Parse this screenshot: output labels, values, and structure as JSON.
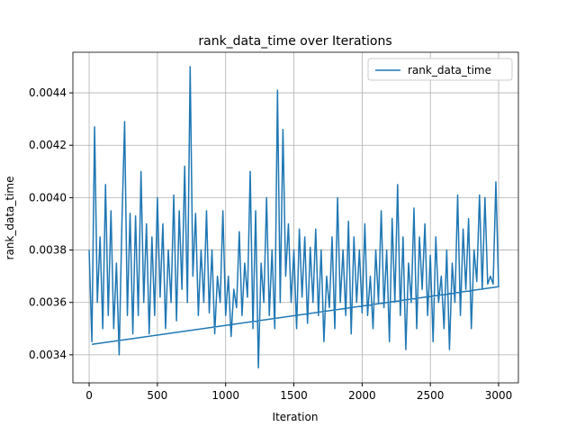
{
  "chart_data": {
    "type": "line",
    "title": "rank_data_time over Iterations",
    "xlabel": "Iteration",
    "ylabel": "rank_data_time",
    "x": [
      0,
      20,
      40,
      60,
      80,
      100,
      120,
      140,
      160,
      180,
      200,
      220,
      240,
      260,
      280,
      300,
      320,
      340,
      360,
      380,
      400,
      420,
      440,
      460,
      480,
      500,
      520,
      540,
      560,
      580,
      600,
      620,
      640,
      660,
      680,
      700,
      720,
      740,
      760,
      780,
      800,
      820,
      840,
      860,
      880,
      900,
      920,
      940,
      960,
      980,
      1000,
      1020,
      1040,
      1060,
      1080,
      1100,
      1120,
      1140,
      1160,
      1180,
      1200,
      1220,
      1240,
      1260,
      1280,
      1300,
      1320,
      1340,
      1360,
      1380,
      1400,
      1420,
      1440,
      1460,
      1480,
      1500,
      1520,
      1540,
      1560,
      1580,
      1600,
      1620,
      1640,
      1660,
      1680,
      1700,
      1720,
      1740,
      1760,
      1780,
      1800,
      1820,
      1840,
      1860,
      1880,
      1900,
      1920,
      1940,
      1960,
      1980,
      2000,
      2020,
      2040,
      2060,
      2080,
      2100,
      2120,
      2140,
      2160,
      2180,
      2200,
      2220,
      2240,
      2260,
      2280,
      2300,
      2320,
      2340,
      2360,
      2380,
      2400,
      2420,
      2440,
      2460,
      2480,
      2500,
      2520,
      2540,
      2560,
      2580,
      2600,
      2620,
      2640,
      2660,
      2680,
      2700,
      2720,
      2740,
      2760,
      2780,
      2800,
      2820,
      2840,
      2860,
      2880,
      2900,
      2920,
      2940,
      2960,
      2980,
      3000,
      20
    ],
    "series": [
      {
        "name": "rank_data_time",
        "color": "#1f77b4",
        "values": [
          0.0038,
          0.00345,
          0.00427,
          0.0036,
          0.00385,
          0.0035,
          0.00405,
          0.00355,
          0.00395,
          0.0035,
          0.00375,
          0.0034,
          0.0039,
          0.00429,
          0.00355,
          0.00394,
          0.00348,
          0.00393,
          0.00355,
          0.0041,
          0.0036,
          0.0039,
          0.00348,
          0.00385,
          0.00355,
          0.004,
          0.00362,
          0.0039,
          0.0035,
          0.0038,
          0.0036,
          0.00401,
          0.00353,
          0.00395,
          0.00365,
          0.00412,
          0.0036,
          0.0045,
          0.0037,
          0.00394,
          0.00355,
          0.0038,
          0.0036,
          0.00395,
          0.00356,
          0.0038,
          0.00348,
          0.0037,
          0.0036,
          0.00395,
          0.00355,
          0.0037,
          0.00347,
          0.00365,
          0.00358,
          0.00387,
          0.00355,
          0.00375,
          0.00362,
          0.0041,
          0.0035,
          0.00395,
          0.00335,
          0.00375,
          0.0036,
          0.004,
          0.00355,
          0.0038,
          0.0035,
          0.00441,
          0.0036,
          0.00426,
          0.0037,
          0.0039,
          0.0036,
          0.0038,
          0.0035,
          0.00388,
          0.00362,
          0.00385,
          0.00352,
          0.00381,
          0.0036,
          0.00388,
          0.00355,
          0.0038,
          0.00345,
          0.0037,
          0.00358,
          0.00385,
          0.0035,
          0.004,
          0.0036,
          0.0038,
          0.00355,
          0.00391,
          0.00348,
          0.00385,
          0.0036,
          0.0038,
          0.00356,
          0.0039,
          0.00355,
          0.0037,
          0.0035,
          0.0038,
          0.0036,
          0.00395,
          0.00358,
          0.0038,
          0.00345,
          0.00392,
          0.0036,
          0.00405,
          0.00355,
          0.00385,
          0.00342,
          0.00375,
          0.0036,
          0.00396,
          0.0035,
          0.00385,
          0.00365,
          0.0039,
          0.00355,
          0.00378,
          0.00345,
          0.00385,
          0.0036,
          0.0037,
          0.0035,
          0.0038,
          0.00342,
          0.00375,
          0.0036,
          0.00401,
          0.00355,
          0.00388,
          0.00365,
          0.00392,
          0.0035,
          0.0038,
          0.00368,
          0.00401,
          0.00365,
          0.004,
          0.00367,
          0.0037,
          0.00367,
          0.00406,
          0.00366,
          0.00344
        ]
      }
    ],
    "xlim": [
      -119,
      3145
    ],
    "ylim": [
      0.003293,
      0.004555
    ],
    "xticks": [
      0,
      500,
      1000,
      1500,
      2000,
      2500,
      3000
    ],
    "yticks": [
      0.0034,
      0.0036,
      0.0038,
      {
        "value": 0.004,
        "label": "0.0040"
      },
      0.0042,
      0.0044
    ],
    "grid": true,
    "legend": "upper right"
  }
}
